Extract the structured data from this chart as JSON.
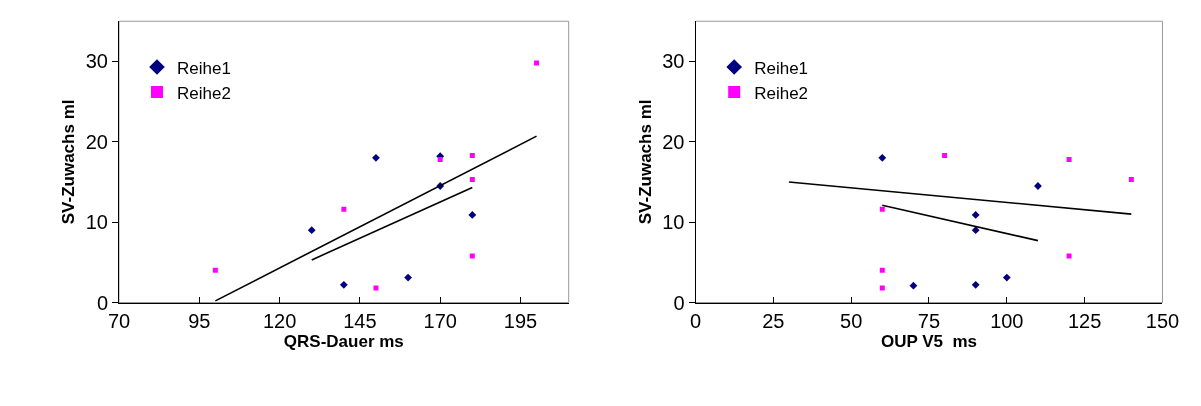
{
  "chart_data": [
    {
      "type": "scatter",
      "xlabel": "QRS-Dauer ms",
      "ylabel": "SV-Zuwachs ml",
      "xlim": [
        70,
        210
      ],
      "xticks": [
        70,
        95,
        120,
        145,
        170,
        195
      ],
      "ylim": [
        0,
        35
      ],
      "yticks": [
        0,
        10,
        20,
        30
      ],
      "grid": false,
      "legend": "top left",
      "series": [
        {
          "name": "Reihe1",
          "color": "#000080",
          "marker": "diamond",
          "x": [
            130,
            140,
            150,
            160,
            170,
            170,
            180
          ],
          "values": [
            9,
            2.2,
            18,
            3.1,
            18.2,
            14.5,
            10.9
          ]
        },
        {
          "name": "Reihe2",
          "color": "#ff00ff",
          "marker": "square",
          "x": [
            100,
            140,
            150,
            170,
            180,
            180,
            180,
            200
          ],
          "values": [
            4,
            11.6,
            1.8,
            17.8,
            18.3,
            15.3,
            5.8,
            29.8
          ]
        },
        {
          "type": "line",
          "color": "#000000",
          "marker": "none",
          "line_style": "solid",
          "x": [
            130,
            180
          ],
          "values": [
            5.3,
            14.3
          ]
        },
        {
          "type": "line",
          "color": "#000000",
          "marker": "none",
          "line_style": "solid",
          "x": [
            100,
            200
          ],
          "values": [
            0.2,
            20.7
          ]
        }
      ]
    },
    {
      "type": "scatter",
      "xlabel": "OUP V5  ms",
      "ylabel": "SV-Zuwachs ml",
      "xlim": [
        0,
        150
      ],
      "xticks": [
        0,
        25,
        50,
        75,
        100,
        125,
        150
      ],
      "ylim": [
        0,
        35
      ],
      "yticks": [
        0,
        10,
        20,
        30
      ],
      "grid": false,
      "legend": "top left",
      "series": [
        {
          "name": "Reihe1",
          "color": "#000080",
          "marker": "diamond",
          "x": [
            60,
            70,
            90,
            90,
            90,
            100,
            110
          ],
          "values": [
            18,
            2.1,
            2.2,
            10.9,
            9,
            3.1,
            14.5
          ]
        },
        {
          "name": "Reihe2",
          "color": "#ff00ff",
          "marker": "square",
          "x": [
            60,
            60,
            60,
            80,
            120,
            120,
            140
          ],
          "values": [
            11.6,
            4,
            1.8,
            18.3,
            17.8,
            5.8,
            15.3
          ]
        },
        {
          "type": "line",
          "color": "#000000",
          "marker": "none",
          "line_style": "solid",
          "x": [
            60,
            110
          ],
          "values": [
            12.1,
            7.7
          ]
        },
        {
          "type": "line",
          "color": "#000000",
          "marker": "none",
          "line_style": "solid",
          "x": [
            30,
            140
          ],
          "values": [
            15,
            11
          ]
        }
      ]
    }
  ]
}
